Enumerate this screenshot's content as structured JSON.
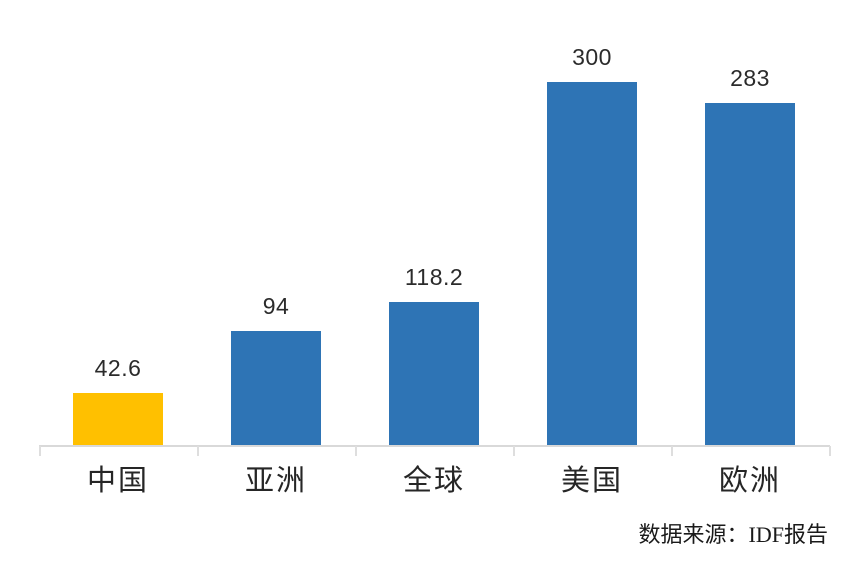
{
  "chart_data": {
    "type": "bar",
    "categories": [
      "中国",
      "亚洲",
      "全球",
      "美国",
      "欧洲"
    ],
    "values": [
      42.6,
      94,
      118.2,
      300,
      283
    ],
    "value_labels": [
      "42.6",
      "94",
      "118.2",
      "300",
      "283"
    ],
    "bar_colors": [
      "#FFC000",
      "#2E74B5",
      "#2E74B5",
      "#2E74B5",
      "#2E74B5"
    ],
    "title": "",
    "xlabel": "",
    "ylabel": "",
    "ylim": [
      0,
      330
    ],
    "grid": false,
    "legend": false,
    "axis_line_color": "#D9D9D9",
    "source_note": "数据来源：IDF报告"
  },
  "colors": {
    "highlight_orange": "#FFC000",
    "primary_blue": "#2E74B5",
    "axis_gray": "#D9D9D9",
    "text_dark": "#262626"
  }
}
